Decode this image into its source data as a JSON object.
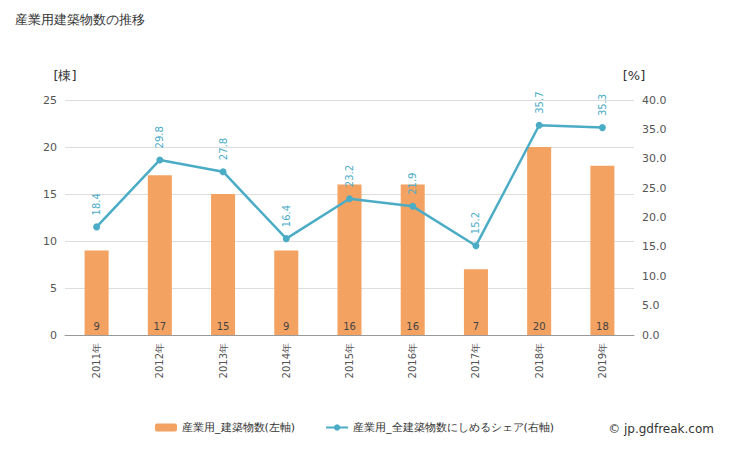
{
  "chart_data": {
    "type": "bar",
    "title": "産業用建築物数の推移",
    "categories": [
      "2011年",
      "2012年",
      "2013年",
      "2014年",
      "2015年",
      "2016年",
      "2017年",
      "2018年",
      "2019年"
    ],
    "series": [
      {
        "name": "産業用_建築物数(左軸)",
        "type": "bar",
        "color": "#f4a261",
        "values": [
          9,
          17,
          15,
          9,
          16,
          16,
          7,
          20,
          18
        ]
      },
      {
        "name": "産業用_全建築物数にしめるシェア(右軸)",
        "type": "line",
        "axis": "y2",
        "color": "#4bacc6",
        "marker": "circle",
        "values": [
          18.4,
          29.8,
          27.8,
          16.4,
          23.2,
          21.9,
          15.2,
          35.7,
          35.3
        ]
      }
    ],
    "y_label": "[棟]",
    "y2_label": "[%]",
    "ylim": [
      0,
      25
    ],
    "yticks": [
      0,
      5,
      10,
      15,
      20,
      25
    ],
    "y2lim": [
      0,
      40
    ],
    "y2ticks": [
      {
        "value": 0,
        "label": "0.0"
      },
      {
        "value": 5,
        "label": "5.0"
      },
      {
        "value": 10,
        "label": "10.0"
      },
      {
        "value": 15,
        "label": "15.0"
      },
      {
        "value": 20,
        "label": "20.0"
      },
      {
        "value": 25,
        "label": "25.0"
      },
      {
        "value": 30,
        "label": "30.0"
      },
      {
        "value": 35,
        "label": "35.0"
      },
      {
        "value": 40,
        "label": "40.0"
      }
    ],
    "grid": true,
    "legend": "bottom",
    "data_labels": true,
    "annotations": [
      "© jp.gdfreak.com"
    ]
  }
}
